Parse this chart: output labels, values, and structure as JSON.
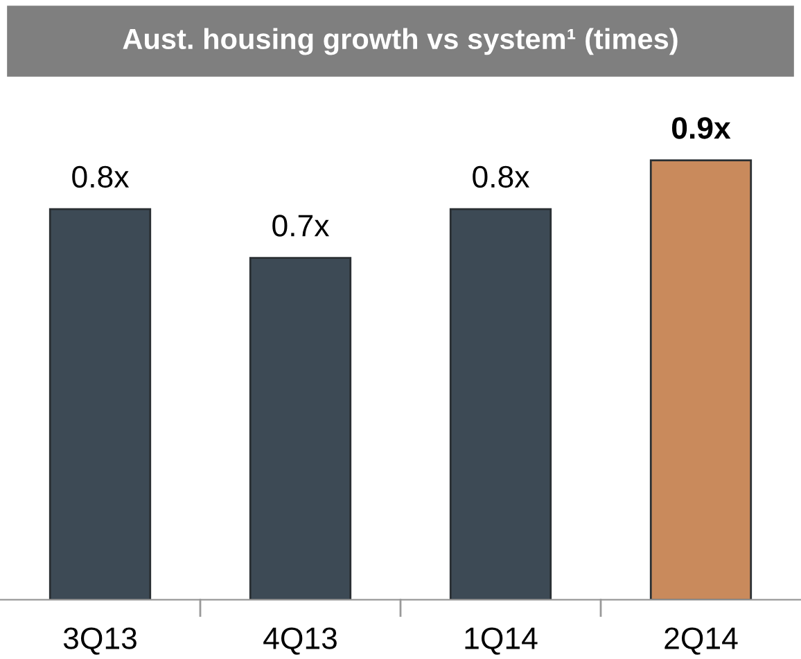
{
  "chart_data": {
    "type": "bar",
    "title": "Aust. housing growth vs system¹ (times)",
    "categories": [
      "3Q13",
      "4Q13",
      "1Q14",
      "2Q14"
    ],
    "values": [
      0.8,
      0.7,
      0.8,
      0.9
    ],
    "colors": [
      "#3d4a55",
      "#3d4a55",
      "#3d4a55",
      "#c98a5c"
    ],
    "value_labels": [
      "0.8x",
      "0.7x",
      "0.8x",
      "0.9x"
    ],
    "tick_labels": "x",
    "grid": false,
    "legend": false
  }
}
